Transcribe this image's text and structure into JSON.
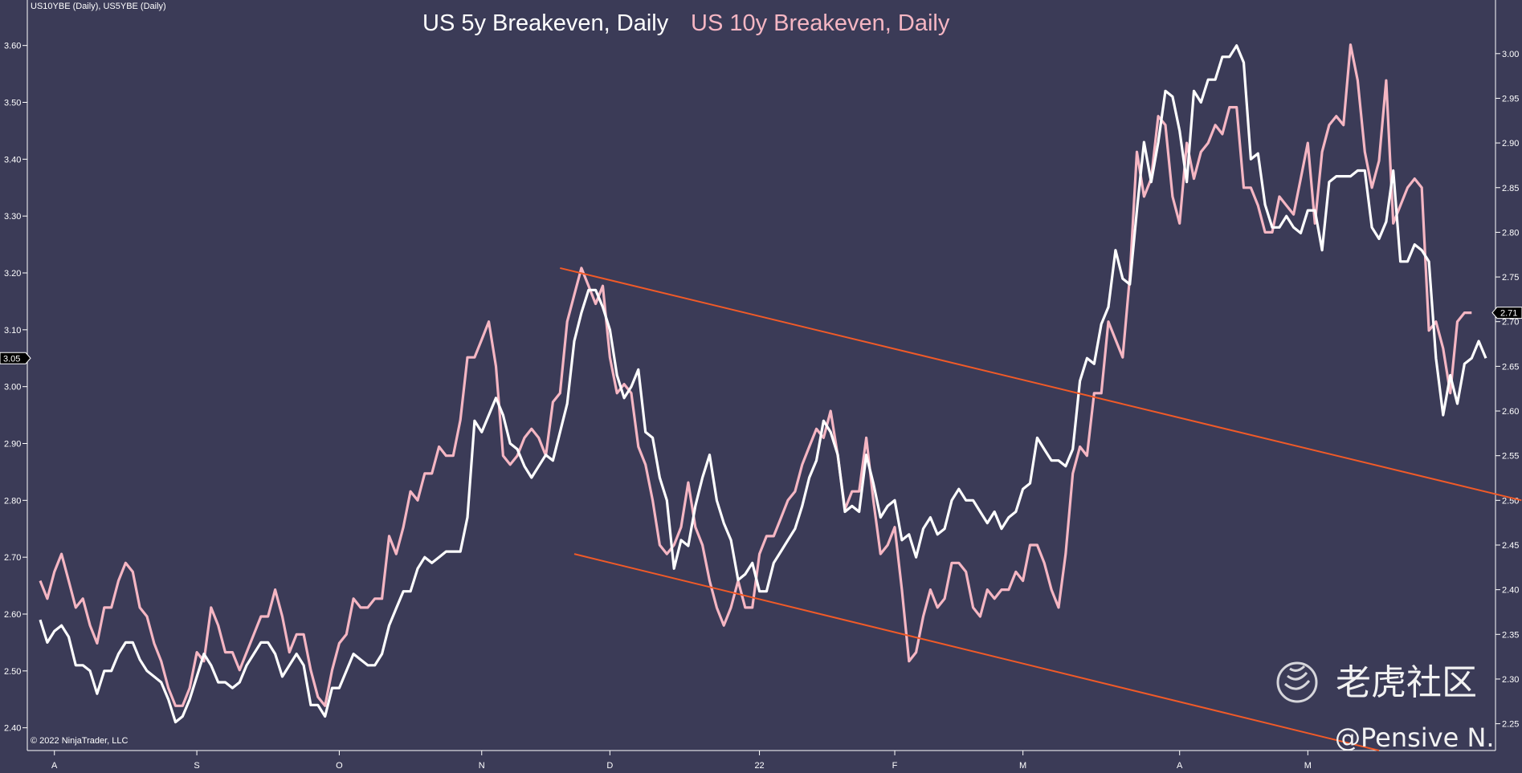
{
  "header": {
    "symbols": "US10YBE (Daily), US5YBE (Daily)",
    "title_5y": "US 5y Breakeven, Daily",
    "title_10y": "US 10y Breakeven, Daily"
  },
  "footer": {
    "copyright": "© 2022 NinjaTrader, LLC"
  },
  "watermark": {
    "community": "老虎社区",
    "author": "@Pensive N."
  },
  "chart_data": {
    "type": "line",
    "title": "US 5y Breakeven, Daily / US 10y Breakeven, Daily",
    "x_labels": [
      "A",
      "S",
      "O",
      "N",
      "D",
      "22",
      "F",
      "M",
      "A",
      "M"
    ],
    "x_label_index": [
      2,
      22,
      42,
      62,
      80,
      101,
      120,
      138,
      160,
      178
    ],
    "left_axis": {
      "ticks": [
        "3.60",
        "3.50",
        "3.40",
        "3.30",
        "3.20",
        "3.10",
        "3.00",
        "2.90",
        "2.80",
        "2.70",
        "2.60",
        "2.50",
        "2.40"
      ],
      "range": [
        2.36,
        3.68
      ],
      "last_value_label": "3.05",
      "last_value": 3.05
    },
    "right_axis": {
      "ticks": [
        "3.00",
        "2.95",
        "2.90",
        "2.85",
        "2.80",
        "2.75",
        "2.70",
        "2.65",
        "2.60",
        "2.55",
        "2.50",
        "2.45",
        "2.40",
        "2.35",
        "2.30",
        "2.25"
      ],
      "range": [
        2.22,
        3.06
      ],
      "last_value_label": "2.71",
      "last_value": 2.71
    },
    "series": [
      {
        "name": "US 5y Breakeven, Daily",
        "axis": "left",
        "color": "#ffffff",
        "values": [
          2.59,
          2.55,
          2.57,
          2.58,
          2.56,
          2.51,
          2.51,
          2.5,
          2.46,
          2.5,
          2.5,
          2.53,
          2.55,
          2.55,
          2.52,
          2.5,
          2.49,
          2.48,
          2.45,
          2.41,
          2.42,
          2.45,
          2.49,
          2.53,
          2.51,
          2.48,
          2.48,
          2.47,
          2.48,
          2.51,
          2.53,
          2.55,
          2.55,
          2.53,
          2.49,
          2.51,
          2.53,
          2.51,
          2.44,
          2.44,
          2.42,
          2.47,
          2.47,
          2.5,
          2.53,
          2.52,
          2.51,
          2.51,
          2.53,
          2.58,
          2.61,
          2.64,
          2.64,
          2.68,
          2.7,
          2.69,
          2.7,
          2.71,
          2.71,
          2.71,
          2.77,
          2.94,
          2.92,
          2.95,
          2.98,
          2.95,
          2.9,
          2.89,
          2.86,
          2.84,
          2.86,
          2.88,
          2.87,
          2.92,
          2.97,
          3.08,
          3.13,
          3.17,
          3.17,
          3.14,
          3.1,
          3.02,
          2.98,
          3.0,
          3.03,
          2.92,
          2.91,
          2.84,
          2.8,
          2.68,
          2.73,
          2.72,
          2.79,
          2.84,
          2.88,
          2.8,
          2.76,
          2.73,
          2.66,
          2.67,
          2.69,
          2.64,
          2.64,
          2.69,
          2.71,
          2.73,
          2.75,
          2.79,
          2.84,
          2.87,
          2.94,
          2.92,
          2.88,
          2.78,
          2.79,
          2.78,
          2.88,
          2.83,
          2.77,
          2.79,
          2.8,
          2.73,
          2.74,
          2.7,
          2.75,
          2.77,
          2.74,
          2.75,
          2.8,
          2.82,
          2.8,
          2.8,
          2.78,
          2.76,
          2.78,
          2.75,
          2.77,
          2.78,
          2.82,
          2.83,
          2.91,
          2.89,
          2.87,
          2.87,
          2.86,
          2.89,
          3.01,
          3.05,
          3.04,
          3.11,
          3.14,
          3.24,
          3.19,
          3.18,
          3.31,
          3.43,
          3.36,
          3.43,
          3.52,
          3.51,
          3.45,
          3.36,
          3.52,
          3.5,
          3.54,
          3.54,
          3.58,
          3.58,
          3.6,
          3.57,
          3.4,
          3.41,
          3.32,
          3.28,
          3.28,
          3.3,
          3.28,
          3.27,
          3.31,
          3.31,
          3.24,
          3.36,
          3.37,
          3.37,
          3.37,
          3.38,
          3.38,
          3.28,
          3.26,
          3.29,
          3.38,
          3.22,
          3.22,
          3.25,
          3.24,
          3.22,
          3.05,
          2.95,
          3.02,
          2.97,
          3.04,
          3.05,
          3.08,
          3.05
        ]
      },
      {
        "name": "US 10y Breakeven, Daily",
        "axis": "right",
        "color": "#f5b6c3",
        "values": [
          2.41,
          2.39,
          2.42,
          2.44,
          2.41,
          2.38,
          2.39,
          2.36,
          2.34,
          2.38,
          2.38,
          2.41,
          2.43,
          2.42,
          2.38,
          2.37,
          2.34,
          2.32,
          2.29,
          2.27,
          2.27,
          2.29,
          2.33,
          2.32,
          2.38,
          2.36,
          2.33,
          2.33,
          2.31,
          2.33,
          2.35,
          2.37,
          2.37,
          2.4,
          2.37,
          2.33,
          2.35,
          2.35,
          2.31,
          2.28,
          2.27,
          2.31,
          2.34,
          2.35,
          2.39,
          2.38,
          2.38,
          2.39,
          2.39,
          2.46,
          2.44,
          2.47,
          2.51,
          2.5,
          2.53,
          2.53,
          2.56,
          2.55,
          2.55,
          2.59,
          2.66,
          2.66,
          2.68,
          2.7,
          2.65,
          2.55,
          2.54,
          2.55,
          2.57,
          2.58,
          2.57,
          2.55,
          2.61,
          2.62,
          2.7,
          2.73,
          2.76,
          2.74,
          2.72,
          2.74,
          2.66,
          2.62,
          2.63,
          2.62,
          2.56,
          2.54,
          2.5,
          2.45,
          2.44,
          2.45,
          2.47,
          2.52,
          2.47,
          2.45,
          2.41,
          2.38,
          2.36,
          2.38,
          2.41,
          2.38,
          2.38,
          2.44,
          2.46,
          2.46,
          2.48,
          2.5,
          2.51,
          2.54,
          2.56,
          2.58,
          2.57,
          2.6,
          2.55,
          2.49,
          2.51,
          2.51,
          2.57,
          2.5,
          2.44,
          2.45,
          2.47,
          2.4,
          2.32,
          2.33,
          2.37,
          2.4,
          2.38,
          2.39,
          2.43,
          2.43,
          2.42,
          2.38,
          2.37,
          2.4,
          2.39,
          2.4,
          2.4,
          2.42,
          2.41,
          2.45,
          2.45,
          2.43,
          2.4,
          2.38,
          2.44,
          2.53,
          2.56,
          2.55,
          2.62,
          2.62,
          2.7,
          2.68,
          2.66,
          2.75,
          2.89,
          2.84,
          2.86,
          2.93,
          2.92,
          2.84,
          2.81,
          2.9,
          2.86,
          2.89,
          2.9,
          2.92,
          2.91,
          2.94,
          2.94,
          2.85,
          2.85,
          2.83,
          2.8,
          2.8,
          2.84,
          2.83,
          2.82,
          2.86,
          2.9,
          2.81,
          2.89,
          2.92,
          2.93,
          2.92,
          3.01,
          2.97,
          2.89,
          2.85,
          2.88,
          2.97,
          2.81,
          2.83,
          2.85,
          2.86,
          2.85,
          2.69,
          2.7,
          2.67,
          2.62,
          2.7,
          2.71,
          2.71
        ]
      }
    ],
    "trendlines": [
      {
        "name": "upper channel line",
        "color": "#f05a28",
        "start": {
          "index": 73,
          "value": 2.76
        },
        "end": {
          "index": 208,
          "value": 2.5
        },
        "axis": "right"
      },
      {
        "name": "lower channel line",
        "color": "#f05a28",
        "start": {
          "index": 75,
          "value": 2.44
        },
        "end": {
          "index": 188,
          "value": 2.22
        },
        "axis": "right"
      }
    ],
    "grid": false,
    "legend": "top-center"
  }
}
